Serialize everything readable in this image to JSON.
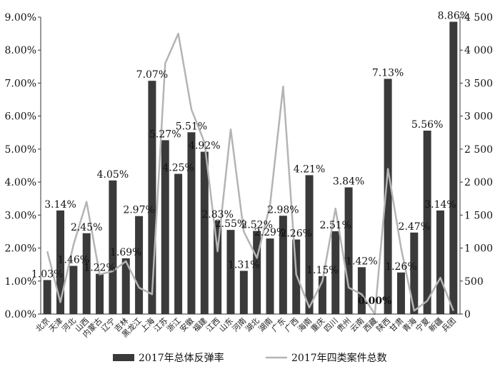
{
  "chart_data": {
    "type": "bar",
    "categories": [
      "北京",
      "天津",
      "河北",
      "山西",
      "内蒙古",
      "辽宁",
      "吉林",
      "黑龙江",
      "上海",
      "江苏",
      "浙江",
      "安徽",
      "福建",
      "江西",
      "山东",
      "河南",
      "湖北",
      "湖南",
      "广东",
      "广西",
      "海南",
      "重庆",
      "四川",
      "贵州",
      "云南",
      "西藏",
      "陕西",
      "甘肃",
      "青海",
      "宁夏",
      "新疆",
      "兵团"
    ],
    "series": [
      {
        "name": "2017年总体反弹率",
        "type": "bar",
        "axis": "left",
        "color": "#3a3a3a",
        "values": [
          1.03,
          3.14,
          1.46,
          2.45,
          1.22,
          4.05,
          1.69,
          2.97,
          7.07,
          5.27,
          4.25,
          5.51,
          4.92,
          2.83,
          2.55,
          1.31,
          2.52,
          2.29,
          2.98,
          2.26,
          4.21,
          1.15,
          2.51,
          3.84,
          1.42,
          0.0,
          7.13,
          1.26,
          2.47,
          5.56,
          3.14,
          8.86
        ],
        "labels": [
          "1.03%",
          "3.14%",
          "1.46%",
          "2.45%",
          "1.22%",
          "4.05%",
          "1.69%",
          "2.97%",
          "7.07%",
          "5.27%",
          "4.25%",
          "5.51%",
          "4.92%",
          "2.83%",
          "2.55%",
          "1.31%",
          "2.52%",
          "2.29%",
          "2.98%",
          "2.26%",
          "4.21%",
          "1.15%",
          "2.51%",
          "3.84%",
          "1.42%",
          "0.00%",
          "7.13%",
          "1.26%",
          "2.47%",
          "5.56%",
          "3.14%",
          "8.86%"
        ]
      },
      {
        "name": "2017年四类案件总数",
        "type": "line",
        "axis": "right",
        "color": "#b4b4b4",
        "values": [
          950,
          180,
          1050,
          1700,
          600,
          650,
          800,
          400,
          300,
          3800,
          4250,
          3100,
          2600,
          950,
          2800,
          1250,
          850,
          1650,
          3450,
          600,
          100,
          500,
          1600,
          400,
          300,
          0,
          2200,
          1000,
          50,
          200,
          550,
          50
        ]
      }
    ],
    "yleft": {
      "min": 0,
      "max": 9,
      "step": 1,
      "ticks": [
        "0.00%",
        "1.00%",
        "2.00%",
        "3.00%",
        "4.00%",
        "5.00%",
        "6.00%",
        "7.00%",
        "8.00%",
        "9.00%"
      ]
    },
    "yright": {
      "min": 0,
      "max": 4500,
      "step": 500,
      "ticks": [
        "0",
        "500",
        "1 000",
        "1 500",
        "2 000",
        "2 500",
        "3 000",
        "3 500",
        "4 000",
        "4 500"
      ]
    },
    "legend": {
      "position": "bottom"
    },
    "grid": false
  }
}
